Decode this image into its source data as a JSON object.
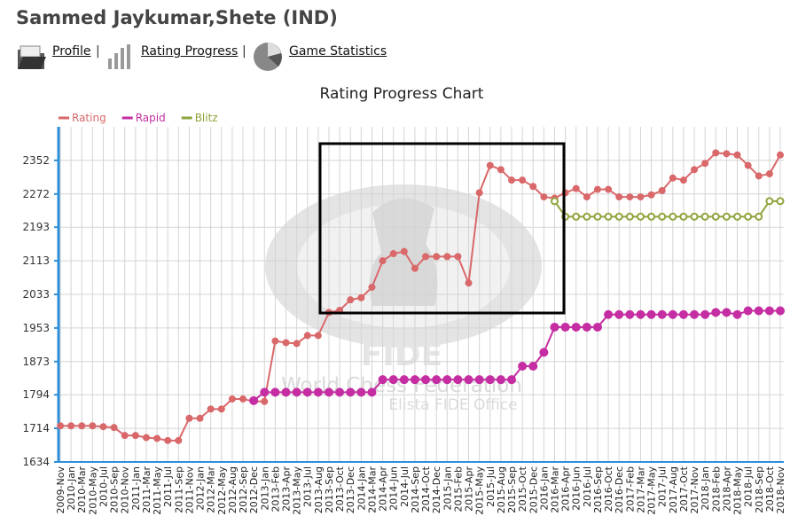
{
  "header": {
    "title": "Sammed Jaykumar,Shete (IND)",
    "links": [
      "Profile",
      "Rating Progress",
      "Game Statistics"
    ],
    "separator": "|"
  },
  "chart_data": {
    "type": "line",
    "title": "Rating Progress Chart",
    "annotations": [
      "FIDE",
      "World Chess Federation",
      "Elista FIDE Office"
    ],
    "categories": [
      "2009-Nov",
      "2010-Jan",
      "2010-Mar",
      "2010-May",
      "2010-Jul",
      "2010-Sep",
      "2010-Nov",
      "2011-Jan",
      "2011-Mar",
      "2011-May",
      "2011-Jul",
      "2011-Sep",
      "2011-Nov",
      "2012-Jan",
      "2012-Mar",
      "2012-May",
      "2012-Aug",
      "2012-Sep",
      "2012-Dec",
      "2013-Jan",
      "2013-Feb",
      "2013-Apr",
      "2013-May",
      "2013-Jul",
      "2013-Aug",
      "2013-Sep",
      "2013-Oct",
      "2013-Dec",
      "2014-Jan",
      "2014-Mar",
      "2014-Apr",
      "2014-Jun",
      "2014-Jul",
      "2014-Sep",
      "2014-Oct",
      "2014-Dec",
      "2015-Jan",
      "2015-Feb",
      "2015-Apr",
      "2015-May",
      "2015-Jul",
      "2015-Aug",
      "2015-Sep",
      "2015-Oct",
      "2015-Dec",
      "2016-Jan",
      "2016-Mar",
      "2016-Apr",
      "2016-Jun",
      "2016-Jul",
      "2016-Sep",
      "2016-Oct",
      "2016-Dec",
      "2017-Feb",
      "2017-Mar",
      "2017-May",
      "2017-Jul",
      "2017-Aug",
      "2017-Oct",
      "2017-Nov",
      "2018-Jan",
      "2018-Feb",
      "2018-Apr",
      "2018-May",
      "2018-Jul",
      "2018-Sep",
      "2018-Oct",
      "2018-Nov"
    ],
    "series": [
      {
        "name": "Rating",
        "color": "#d9686a",
        "hollow": false,
        "values": [
          1720,
          1720,
          1720,
          1720,
          1718,
          1716,
          1697,
          1697,
          1692,
          1690,
          1685,
          1685,
          1738,
          1738,
          1760,
          1760,
          1784,
          1784,
          1778,
          1778,
          1922,
          1918,
          1916,
          1935,
          1935,
          1990,
          1995,
          2020,
          2025,
          2050,
          2113,
          2130,
          2135,
          2095,
          2123,
          2123,
          2123,
          2123,
          2060,
          2275,
          2340,
          2330,
          2305,
          2305,
          2290,
          2265,
          2262,
          2275,
          2285,
          2265,
          2283,
          2283,
          2265,
          2265,
          2265,
          2270,
          2280,
          2310,
          2305,
          2330,
          2345,
          2370,
          2368,
          2365,
          2340,
          2315,
          2320,
          2365
        ]
      },
      {
        "name": "Rapid",
        "color": "#c52ea2",
        "hollow": false,
        "values": [
          null,
          null,
          null,
          null,
          null,
          null,
          null,
          null,
          null,
          null,
          null,
          null,
          null,
          null,
          null,
          null,
          null,
          null,
          1780,
          1800,
          1800,
          1800,
          1800,
          1800,
          1800,
          1800,
          1800,
          1800,
          1800,
          1800,
          1830,
          1830,
          1830,
          1830,
          1830,
          1830,
          1830,
          1830,
          1830,
          1830,
          1830,
          1830,
          1830,
          1862,
          1862,
          1895,
          1955,
          1955,
          1955,
          1955,
          1955,
          1985,
          1985,
          1985,
          1985,
          1985,
          1985,
          1985,
          1985,
          1985,
          1985,
          1990,
          1990,
          1985,
          1994,
          1994,
          1994,
          1994
        ]
      },
      {
        "name": "Blitz",
        "color": "#8ea43c",
        "hollow": true,
        "values": [
          null,
          null,
          null,
          null,
          null,
          null,
          null,
          null,
          null,
          null,
          null,
          null,
          null,
          null,
          null,
          null,
          null,
          null,
          null,
          null,
          null,
          null,
          null,
          null,
          null,
          null,
          null,
          null,
          null,
          null,
          null,
          null,
          null,
          null,
          null,
          null,
          null,
          null,
          null,
          null,
          null,
          null,
          null,
          null,
          null,
          null,
          2255,
          2218,
          2218,
          2218,
          2218,
          2218,
          2218,
          2218,
          2218,
          2218,
          2218,
          2218,
          2218,
          2218,
          2218,
          2218,
          2218,
          2218,
          2218,
          2218,
          2255,
          2255
        ]
      }
    ],
    "ylim": [
      1634,
      2432
    ],
    "yticks": [
      1634,
      1714,
      1794,
      1873,
      1953,
      2033,
      2113,
      2193,
      2272,
      2352
    ],
    "grid": true
  }
}
